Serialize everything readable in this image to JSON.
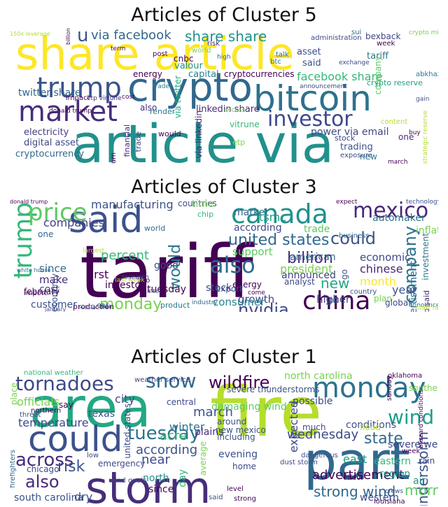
{
  "figures": [
    {
      "title": "Articles of Cluster 5",
      "words": [
        {
          "text": "share article",
          "color": "#fde725"
        },
        {
          "text": "article via",
          "color": "#21918c"
        },
        {
          "text": "crypto",
          "color": "#31688e"
        },
        {
          "text": "bitcoin",
          "color": "#2c728e"
        },
        {
          "text": "market",
          "color": "#472d7b"
        },
        {
          "text": "trump",
          "color": "#3b528b"
        },
        {
          "text": "investor",
          "color": "#3e4989"
        },
        {
          "text": "via facebook",
          "color": "#31688e"
        },
        {
          "text": "share share",
          "color": "#21918c"
        },
        {
          "text": "u",
          "color": "#3b528b"
        },
        {
          "text": "facebook share",
          "color": "#35b779"
        },
        {
          "text": "twitter share",
          "color": "#31688e"
        },
        {
          "text": "electricity",
          "color": "#433e85"
        },
        {
          "text": "digital asset",
          "color": "#3e4989"
        },
        {
          "text": "cryptocurrency",
          "color": "#31688e"
        },
        {
          "text": "linkedin share",
          "color": "#482878"
        },
        {
          "text": "via linkedin",
          "color": "#482878"
        },
        {
          "text": "via twitter",
          "color": "#22a884"
        },
        {
          "text": "vitrune",
          "color": "#35b779"
        },
        {
          "text": "power via email",
          "color": "#3e4989"
        },
        {
          "text": "cryptocurrencies",
          "color": "#440154"
        },
        {
          "text": "valour",
          "color": "#21918c"
        },
        {
          "text": "capital",
          "color": "#26828e"
        },
        {
          "text": "energy",
          "color": "#440154"
        },
        {
          "text": "cnbc",
          "color": "#440154"
        },
        {
          "text": "also",
          "color": "#472d7b"
        },
        {
          "text": "asset",
          "color": "#3e4989"
        },
        {
          "text": "said",
          "color": "#3b528b"
        },
        {
          "text": "tariff",
          "color": "#2a788e"
        },
        {
          "text": "company",
          "color": "#5ec962"
        },
        {
          "text": "stock",
          "color": "#3e4989"
        },
        {
          "text": "trading",
          "color": "#3b528b"
        },
        {
          "text": "investment",
          "color": "#7ad151"
        },
        {
          "text": "new",
          "color": "#26828e"
        },
        {
          "text": "one",
          "color": "#472d7b"
        },
        {
          "text": "crypto reserve",
          "color": "#1f9e89"
        },
        {
          "text": "financial",
          "color": "#482878"
        },
        {
          "text": "trade",
          "color": "#3e4989"
        },
        {
          "text": "would",
          "color": "#440154"
        },
        {
          "text": "ethereum",
          "color": "#440154"
        },
        {
          "text": "etp",
          "color": "#7ad151"
        },
        {
          "text": "render",
          "color": "#2a788e"
        },
        {
          "text": "impact",
          "color": "#440154"
        },
        {
          "text": "btc",
          "color": "#2c728e"
        },
        {
          "text": "talk",
          "color": "#31688e"
        },
        {
          "text": "world",
          "color": "#7ad151"
        },
        {
          "text": "risk",
          "color": "#472d7b"
        },
        {
          "text": "post",
          "color": "#440154"
        },
        {
          "text": "term",
          "color": "#440154"
        },
        {
          "text": "bexback",
          "color": "#414487"
        },
        {
          "text": "week",
          "color": "#440154"
        },
        {
          "text": "sui",
          "color": "#31688e"
        },
        {
          "text": "administration",
          "color": "#3e4989"
        },
        {
          "text": "exchange",
          "color": "#3e4989"
        },
        {
          "text": "crypto mining",
          "color": "#7ad151"
        },
        {
          "text": "march",
          "color": "#440154"
        },
        {
          "text": "abkhazia",
          "color": "#2a788e"
        },
        {
          "text": "gain",
          "color": "#3b528b"
        },
        {
          "text": "content",
          "color": "#b5de2b"
        },
        {
          "text": "strategic reserve",
          "color": "#b5de2b"
        },
        {
          "text": "buy",
          "color": "#440154"
        },
        {
          "text": "access",
          "color": "#7ad151"
        },
        {
          "text": "exposure",
          "color": "#3e4989"
        },
        {
          "text": "could",
          "color": "#b5de2b"
        },
        {
          "text": "announcement",
          "color": "#3e4989"
        },
        {
          "text": "high",
          "color": "#31688e"
        },
        {
          "text": "trader",
          "color": "#26828e"
        },
        {
          "text": "etp virtune",
          "color": "#482878"
        },
        {
          "text": "donald trump",
          "color": "#440154"
        },
        {
          "text": "150x leverage",
          "color": "#b5de2b"
        },
        {
          "text": "billion",
          "color": "#440154"
        },
        {
          "text": "cost",
          "color": "#440154"
        }
      ]
    },
    {
      "title": "Articles of Cluster 3",
      "words": [
        {
          "text": "tariff",
          "color": "#440154"
        },
        {
          "text": "said",
          "color": "#3b528b"
        },
        {
          "text": "canada",
          "color": "#21918c"
        },
        {
          "text": "mexico",
          "color": "#482878"
        },
        {
          "text": "china",
          "color": "#440154"
        },
        {
          "text": "also",
          "color": "#31688e"
        },
        {
          "text": "trump",
          "color": "#35b779"
        },
        {
          "text": "price",
          "color": "#5ec962"
        },
        {
          "text": "would",
          "color": "#2a788e"
        },
        {
          "text": "monday",
          "color": "#7ad151"
        },
        {
          "text": "company",
          "color": "#2c728e"
        },
        {
          "text": "nvidia",
          "color": "#3e4989"
        },
        {
          "text": "united states",
          "color": "#31688e"
        },
        {
          "text": "billion",
          "color": "#472d7b"
        },
        {
          "text": "could",
          "color": "#3b528b"
        },
        {
          "text": "manufacturing",
          "color": "#3b528b"
        },
        {
          "text": "companies",
          "color": "#433e85"
        },
        {
          "text": "according",
          "color": "#3e4989"
        },
        {
          "text": "market",
          "color": "#31688e"
        },
        {
          "text": "tsmc",
          "color": "#1f9e89"
        },
        {
          "text": "trade",
          "color": "#5ec962"
        },
        {
          "text": "percent",
          "color": "#35b779"
        },
        {
          "text": "since",
          "color": "#31688e"
        },
        {
          "text": "make",
          "color": "#482878"
        },
        {
          "text": "cost",
          "color": "#3e4989"
        },
        {
          "text": "economy",
          "color": "#3b528b"
        },
        {
          "text": "investor",
          "color": "#440154"
        },
        {
          "text": "president",
          "color": "#7ad151"
        },
        {
          "text": "american",
          "color": "#31688e"
        },
        {
          "text": "economic",
          "color": "#3e4989"
        },
        {
          "text": "chinese",
          "color": "#482878"
        },
        {
          "text": "new",
          "color": "#22a884"
        },
        {
          "text": "year",
          "color": "#3b528b"
        },
        {
          "text": "higher",
          "color": "#3e4989"
        },
        {
          "text": "announced",
          "color": "#433e85"
        },
        {
          "text": "support",
          "color": "#5ec962"
        },
        {
          "text": "investment",
          "color": "#2a788e"
        },
        {
          "text": "advertisement",
          "color": "#2c728e"
        },
        {
          "text": "inflation",
          "color": "#7ad151"
        },
        {
          "text": "growth",
          "color": "#3e4989"
        },
        {
          "text": "consumer",
          "color": "#26828e"
        },
        {
          "text": "product",
          "color": "#2a788e"
        },
        {
          "text": "production",
          "color": "#440154"
        },
        {
          "text": "customer",
          "color": "#3b528b"
        },
        {
          "text": "world",
          "color": "#2c728e"
        },
        {
          "text": "good",
          "color": "#3e4989"
        },
        {
          "text": "first",
          "color": "#440154"
        },
        {
          "text": "tuesday",
          "color": "#440154"
        },
        {
          "text": "car",
          "color": "#31688e"
        },
        {
          "text": "two",
          "color": "#440154"
        },
        {
          "text": "export",
          "color": "#3b528b"
        },
        {
          "text": "stock",
          "color": "#3e4989"
        },
        {
          "text": "month",
          "color": "#fde725"
        },
        {
          "text": "plan",
          "color": "#7ad151"
        },
        {
          "text": "global",
          "color": "#3e4989"
        },
        {
          "text": "trump said",
          "color": "#472d7b"
        },
        {
          "text": "countries",
          "color": "#3b528b"
        },
        {
          "text": "time",
          "color": "#7ad151"
        },
        {
          "text": "automaker",
          "color": "#2c728e"
        },
        {
          "text": "go",
          "color": "#3b528b"
        },
        {
          "text": "february",
          "color": "#440154"
        },
        {
          "text": "job",
          "color": "#3b528b"
        },
        {
          "text": "analyst",
          "color": "#3e4989"
        },
        {
          "text": "energy",
          "color": "#440154"
        },
        {
          "text": "chip",
          "color": "#35b779"
        },
        {
          "text": "one",
          "color": "#31688e"
        },
        {
          "text": "import",
          "color": "#440154"
        },
        {
          "text": "country",
          "color": "#3b528b"
        },
        {
          "text": "january",
          "color": "#3b528b"
        },
        {
          "text": "announcement",
          "color": "#2a788e"
        },
        {
          "text": "last week",
          "color": "#b5de2b"
        },
        {
          "text": "largest",
          "color": "#b5de2b"
        },
        {
          "text": "supply chain",
          "color": "#31688e"
        },
        {
          "text": "white house",
          "color": "#31688e"
        },
        {
          "text": "donald trump",
          "color": "#440154"
        },
        {
          "text": "research",
          "color": "#3e4989"
        },
        {
          "text": "technology",
          "color": "#3b528b"
        },
        {
          "text": "business",
          "color": "#31688e"
        },
        {
          "text": "expect",
          "color": "#440154"
        },
        {
          "text": "intel",
          "color": "#3e4989"
        },
        {
          "text": "start rate",
          "color": "#b5de2b"
        },
        {
          "text": "industry",
          "color": "#31688e"
        },
        {
          "text": "come",
          "color": "#440154"
        },
        {
          "text": "revenue",
          "color": "#3b528b"
        },
        {
          "text": "mean",
          "color": "#440154"
        },
        {
          "text": "european",
          "color": "#31688e"
        },
        {
          "text": "going",
          "color": "#3b528b"
        }
      ]
    },
    {
      "title": "Articles of Cluster 1",
      "words": [
        {
          "text": "storm",
          "color": "#472d7b"
        },
        {
          "text": "fire",
          "color": "#b5de2b"
        },
        {
          "text": "area",
          "color": "#22a884"
        },
        {
          "text": "part",
          "color": "#31688e"
        },
        {
          "text": "could",
          "color": "#3b528b"
        },
        {
          "text": "monday",
          "color": "#2c728e"
        },
        {
          "text": "tornadoes",
          "color": "#3e4989"
        },
        {
          "text": "snow",
          "color": "#31688e"
        },
        {
          "text": "wildfire",
          "color": "#440154"
        },
        {
          "text": "tuesday",
          "color": "#2c728e"
        },
        {
          "text": "wind",
          "color": "#1f9e89"
        },
        {
          "text": "state",
          "color": "#31688e"
        },
        {
          "text": "across",
          "color": "#472d7b"
        },
        {
          "text": "risk",
          "color": "#3b528b"
        },
        {
          "text": "also",
          "color": "#482878"
        },
        {
          "text": "temperature",
          "color": "#3e4989"
        },
        {
          "text": "wednesday",
          "color": "#3e4989"
        },
        {
          "text": "strong wind",
          "color": "#31688e"
        },
        {
          "text": "advertisement",
          "color": "#440154"
        },
        {
          "text": "thunderstorm",
          "color": "#3b528b"
        },
        {
          "text": "expected",
          "color": "#3e4989"
        },
        {
          "text": "north carolina",
          "color": "#7ad151"
        },
        {
          "text": "morning",
          "color": "#5ec962"
        },
        {
          "text": "according",
          "color": "#3b528b"
        },
        {
          "text": "march",
          "color": "#3b528b"
        },
        {
          "text": "near",
          "color": "#3e4989"
        },
        {
          "text": "east",
          "color": "#1f9e89"
        },
        {
          "text": "eastern",
          "color": "#35b779"
        },
        {
          "text": "severe weather",
          "color": "#3e4989"
        },
        {
          "text": "conditions",
          "color": "#3b528b"
        },
        {
          "text": "plains",
          "color": "#472d7b"
        },
        {
          "text": "evening",
          "color": "#3b528b"
        },
        {
          "text": "south carolina",
          "color": "#3b528b"
        },
        {
          "text": "officials",
          "color": "#7ad151"
        },
        {
          "text": "texas",
          "color": "#3b528b"
        },
        {
          "text": "acre",
          "color": "#35b779"
        },
        {
          "text": "winter",
          "color": "#2c728e"
        },
        {
          "text": "damaging wind",
          "color": "#5ec962"
        },
        {
          "text": "severe thunderstorms",
          "color": "#3b528b"
        },
        {
          "text": "possible",
          "color": "#3e4989"
        },
        {
          "text": "much",
          "color": "#3b528b"
        },
        {
          "text": "home",
          "color": "#3e4989"
        },
        {
          "text": "average",
          "color": "#7ad151"
        },
        {
          "text": "region",
          "color": "#1f9e89"
        },
        {
          "text": "air",
          "color": "#21918c"
        },
        {
          "text": "western",
          "color": "#3e4989"
        },
        {
          "text": "dry",
          "color": "#3b528b"
        },
        {
          "text": "chicago",
          "color": "#3e4989"
        },
        {
          "text": "emergency",
          "color": "#3e4989"
        },
        {
          "text": "north",
          "color": "#21918c"
        },
        {
          "text": "since",
          "color": "#440154"
        },
        {
          "text": "day",
          "color": "#35b779"
        },
        {
          "text": "city",
          "color": "#3e4989"
        },
        {
          "text": "central",
          "color": "#3e4989"
        },
        {
          "text": "united states",
          "color": "#3e4989"
        },
        {
          "text": "around",
          "color": "#3b528b"
        },
        {
          "text": "new mexico",
          "color": "#3b528b"
        },
        {
          "text": "including",
          "color": "#3b528b"
        },
        {
          "text": "flood",
          "color": "#b5de2b"
        },
        {
          "text": "southern",
          "color": "#7ad151"
        },
        {
          "text": "national weather",
          "color": "#35b779"
        },
        {
          "text": "weather service",
          "color": "#3e4989"
        },
        {
          "text": "oklahoma",
          "color": "#440154"
        },
        {
          "text": "blizzard conditions",
          "color": "#440154"
        },
        {
          "text": "crews",
          "color": "#3e4989"
        },
        {
          "text": "sunday",
          "color": "#440154"
        },
        {
          "text": "week",
          "color": "#440154"
        },
        {
          "text": "rain",
          "color": "#3e4989"
        },
        {
          "text": "firefighters",
          "color": "#31688e"
        },
        {
          "text": "wind gusts",
          "color": "#3e4989"
        },
        {
          "text": "low",
          "color": "#3e4989"
        },
        {
          "text": "say",
          "color": "#440154"
        },
        {
          "text": "place",
          "color": "#7ad151"
        },
        {
          "text": "threat",
          "color": "#3b528b"
        },
        {
          "text": "northern",
          "color": "#440154"
        },
        {
          "text": "strong",
          "color": "#440154"
        },
        {
          "text": "said",
          "color": "#3b528b"
        },
        {
          "text": "dust storm",
          "color": "#3e4989"
        },
        {
          "text": "dangerous",
          "color": "#3b528b"
        },
        {
          "text": "effect",
          "color": "#440154"
        },
        {
          "text": "level",
          "color": "#440154"
        },
        {
          "text": "louisiana",
          "color": "#440154"
        }
      ]
    }
  ]
}
